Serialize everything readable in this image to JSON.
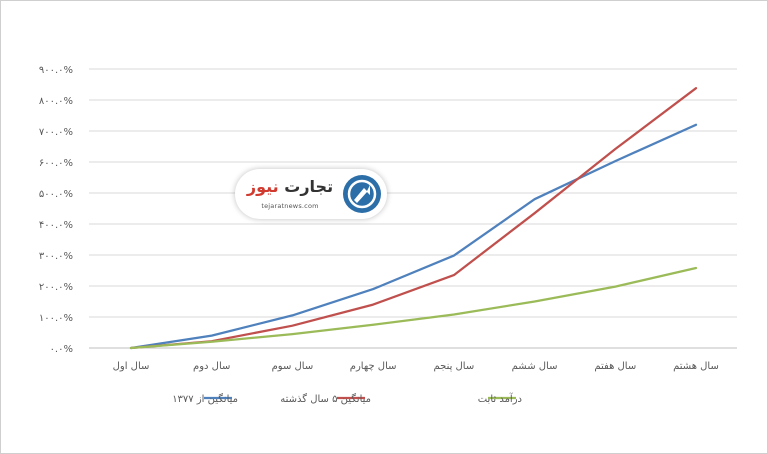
{
  "chart_data": {
    "type": "line",
    "title": "",
    "xlabel": "",
    "ylabel": "",
    "ylim": [
      0,
      900
    ],
    "yticks": [
      0,
      100,
      200,
      300,
      400,
      500,
      600,
      700,
      800,
      900
    ],
    "ytick_labels": [
      "۰.۰%",
      "۱۰۰.۰%",
      "۲۰۰.۰%",
      "۳۰۰.۰%",
      "۴۰۰.۰%",
      "۵۰۰.۰%",
      "۶۰۰.۰%",
      "۷۰۰.۰%",
      "۸۰۰.۰%",
      "۹۰۰.۰%"
    ],
    "categories": [
      "سال اول",
      "سال دوم",
      "سال سوم",
      "سال چهارم",
      "سال پنجم",
      "سال ششم",
      "سال هفتم",
      "سال هشتم"
    ],
    "grid": true,
    "legend_position": "bottom",
    "series": [
      {
        "name": "میانگین از ۱۳۷۷",
        "color": "#4f81bd",
        "values": [
          0,
          40,
          105,
          190,
          298,
          480,
          603,
          720
        ]
      },
      {
        "name": "میانگین ۵ سال گذشته",
        "color": "#c0504d",
        "values": [
          0,
          22,
          72,
          140,
          235,
          435,
          642,
          838
        ]
      },
      {
        "name": "درآمد ثابت",
        "color": "#9bbb59",
        "values": [
          0,
          20,
          45,
          75,
          108,
          150,
          198,
          258
        ]
      }
    ]
  },
  "logo": {
    "word_main": "تجارت",
    "word_accent": "نیوز",
    "url": "tejaratnews.com"
  }
}
